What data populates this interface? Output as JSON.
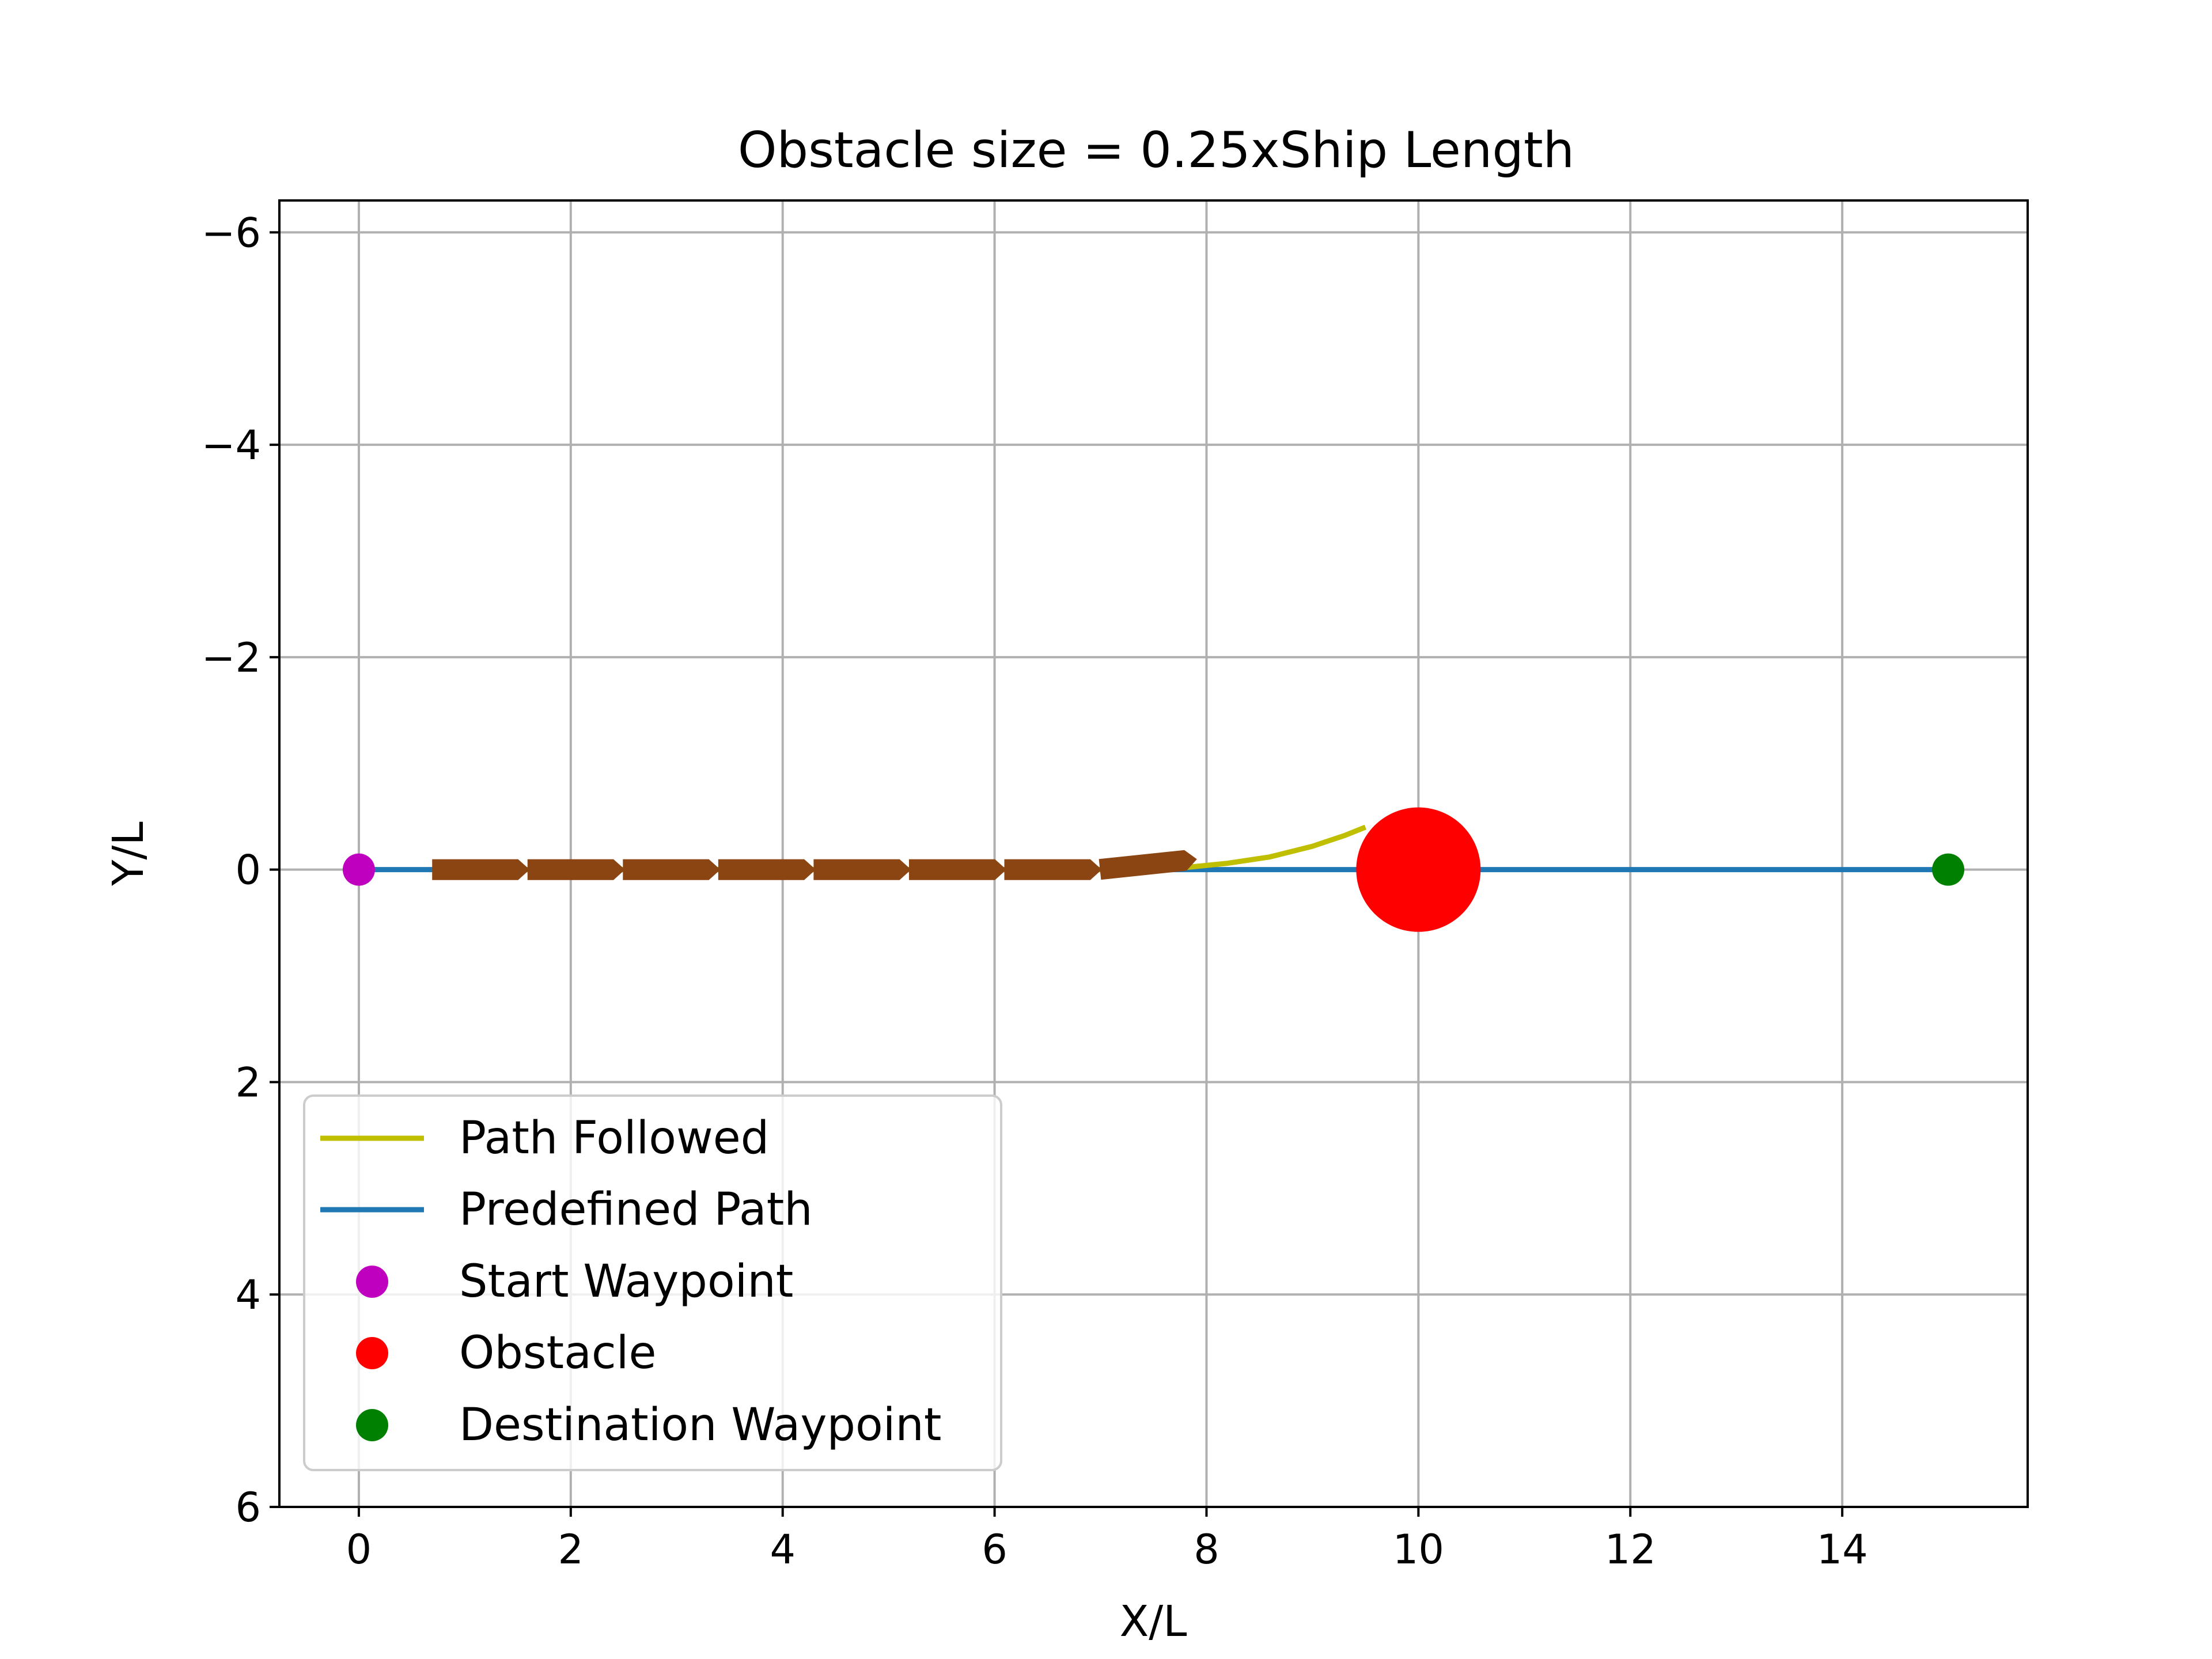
{
  "chart_data": {
    "type": "line",
    "title": "Obstacle size = 0.25xShip Length",
    "xlabel": "X/L",
    "ylabel": "Y/L",
    "xlim": [
      -0.75,
      15.75
    ],
    "ylim": [
      -6.3,
      6
    ],
    "y_inverted": true,
    "grid": true,
    "legend_placement": "lower-left",
    "xticks": [
      0,
      2,
      4,
      6,
      8,
      10,
      12,
      14
    ],
    "yticks": [
      -6,
      -4,
      -2,
      0,
      2,
      4,
      6
    ],
    "series": [
      {
        "name": "Path Followed",
        "kind": "line",
        "color": "#bfbf00",
        "x": [
          0.7,
          1.5,
          2.5,
          3.5,
          4.5,
          5.5,
          6.5,
          7.0,
          7.4,
          7.8,
          8.2,
          8.6,
          9.0,
          9.3,
          9.5
        ],
        "y": [
          0,
          0,
          0,
          0,
          0,
          0,
          0,
          0,
          0,
          -0.02,
          -0.06,
          -0.12,
          -0.22,
          -0.32,
          -0.4
        ]
      },
      {
        "name": "Predefined Path",
        "kind": "line",
        "color": "#1f77b4",
        "x": [
          0,
          15
        ],
        "y": [
          0,
          0
        ]
      },
      {
        "name": "Start Waypoint",
        "kind": "point",
        "color": "#bf00bf",
        "x": [
          0
        ],
        "y": [
          0
        ]
      },
      {
        "name": "Obstacle",
        "kind": "point",
        "color": "#ff0000",
        "x": [
          10
        ],
        "y": [
          0
        ]
      },
      {
        "name": "Destination Waypoint",
        "kind": "point",
        "color": "#008000",
        "x": [
          15
        ],
        "y": [
          0
        ]
      }
    ],
    "ship_positions": {
      "color": "#8b4513",
      "x": [
        1.15,
        2.05,
        2.95,
        3.85,
        4.75,
        5.65,
        6.55,
        7.45
      ],
      "y": [
        0,
        0,
        0,
        0,
        0,
        0,
        0,
        -0.05
      ],
      "heading_deg": [
        0,
        0,
        0,
        0,
        0,
        0,
        0,
        -6
      ]
    }
  }
}
